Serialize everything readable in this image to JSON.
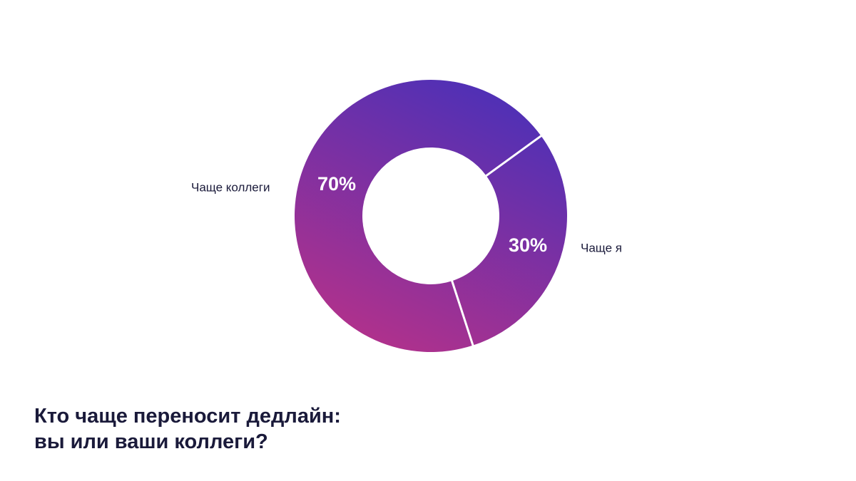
{
  "colors": {
    "gradient_start": "#4a30b8",
    "gradient_end": "#b0318c",
    "separator": "#ffffff",
    "label_text": "#1a1a3a",
    "value_text": "#ffffff"
  },
  "chart_data": {
    "type": "pie",
    "donut": true,
    "title_lines": [
      "Кто чаще переносит дедлайн:",
      "вы или ваши коллеги?"
    ],
    "slices": [
      {
        "label": "Чаще коллеги",
        "value": 70,
        "display": "70%"
      },
      {
        "label": "Чаще я",
        "value": 30,
        "display": "30%"
      }
    ]
  }
}
